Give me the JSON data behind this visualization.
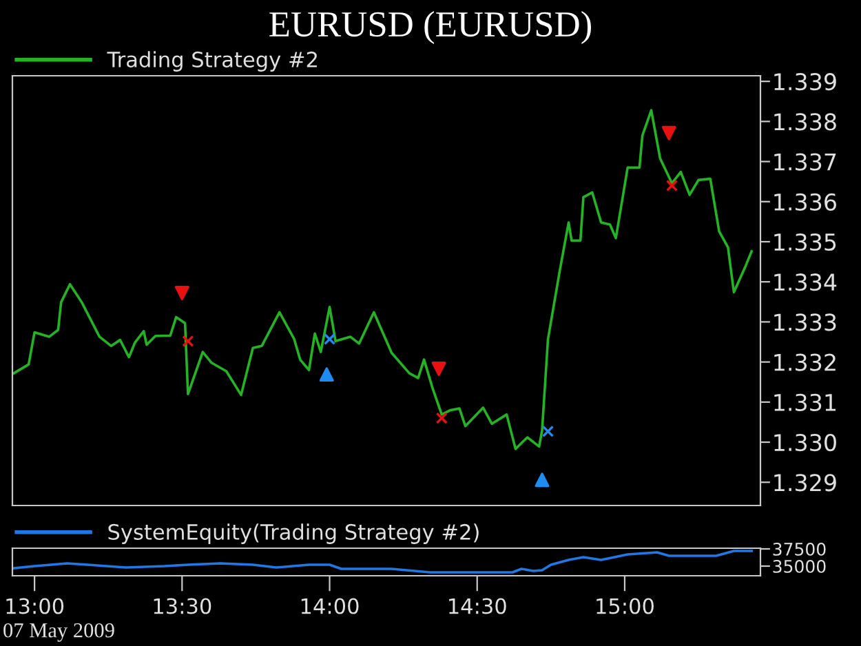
{
  "chart_data": [
    {
      "type": "line",
      "title": "EURUSD (EURUSD)",
      "legend": "top left",
      "tick_labels": "y",
      "grid": false,
      "xlim": [
        12.925,
        15.46
      ],
      "ylim": [
        1.32842,
        1.33914
      ],
      "yticks": [
        {
          "value": 1.329,
          "label": "1.329"
        },
        {
          "value": 1.33,
          "label": "1.330"
        },
        {
          "value": 1.331,
          "label": "1.331"
        },
        {
          "value": 1.332,
          "label": "1.332"
        },
        {
          "value": 1.333,
          "label": "1.333"
        },
        {
          "value": 1.334,
          "label": "1.334"
        },
        {
          "value": 1.335,
          "label": "1.335"
        },
        {
          "value": 1.336,
          "label": "1.336"
        },
        {
          "value": 1.337,
          "label": "1.337"
        },
        {
          "value": 1.338,
          "label": "1.338"
        },
        {
          "value": 1.339,
          "label": "1.339"
        }
      ],
      "series": [
        {
          "name": "Trading Strategy #2",
          "color": "#22b422",
          "marker": "none",
          "x": [
            12.93,
            12.98,
            13.0,
            13.05,
            13.08,
            13.09,
            13.12,
            13.16,
            13.22,
            13.26,
            13.29,
            13.32,
            13.34,
            13.37,
            13.38,
            13.41,
            13.46,
            13.48,
            13.51,
            13.52,
            13.57,
            13.6,
            13.65,
            13.7,
            13.74,
            13.77,
            13.83,
            13.88,
            13.9,
            13.93,
            13.95,
            13.97,
            14.0,
            14.02,
            14.07,
            14.1,
            14.15,
            14.21,
            14.27,
            14.3,
            14.32,
            14.35,
            14.38,
            14.41,
            14.44,
            14.46,
            14.52,
            14.55,
            14.6,
            14.63,
            14.67,
            14.71,
            14.72,
            14.74,
            14.78,
            14.81,
            14.82,
            14.85,
            14.86,
            14.89,
            14.92,
            14.95,
            14.97,
            15.01,
            15.05,
            15.06,
            15.09,
            15.12,
            15.16,
            15.19,
            15.22,
            15.25,
            15.29,
            15.32,
            15.35,
            15.37,
            15.41,
            15.43
          ],
          "values": [
            1.33172,
            1.33194,
            1.33274,
            1.33263,
            1.3328,
            1.33349,
            1.33394,
            1.33349,
            1.33263,
            1.3324,
            1.33255,
            1.33212,
            1.33248,
            1.33277,
            1.33243,
            1.33265,
            1.33266,
            1.33312,
            1.33297,
            1.3312,
            1.33225,
            1.33198,
            1.33177,
            1.33118,
            1.33235,
            1.3324,
            1.33324,
            1.33257,
            1.33206,
            1.3318,
            1.33271,
            1.33225,
            1.33337,
            1.33252,
            1.33263,
            1.33246,
            1.33324,
            1.33223,
            1.33172,
            1.3316,
            1.33206,
            1.33132,
            1.33069,
            1.3308,
            1.33084,
            1.3304,
            1.33086,
            1.33046,
            1.33069,
            1.32983,
            1.33012,
            1.32989,
            1.33029,
            1.33257,
            1.33428,
            1.33548,
            1.33503,
            1.33503,
            1.33611,
            1.33623,
            1.33548,
            1.33543,
            1.33509,
            1.33685,
            1.33685,
            1.33765,
            1.33828,
            1.33708,
            1.33646,
            1.33674,
            1.33617,
            1.33654,
            1.33657,
            1.33526,
            1.33486,
            1.33374,
            1.3344,
            1.33476
          ]
        },
        {
          "type": "scatter",
          "color": "#e81010",
          "marker": "triangle_down",
          "x": [
            13.5,
            14.37,
            15.15
          ],
          "values": [
            1.33372,
            1.33183,
            1.33771
          ]
        },
        {
          "type": "scatter",
          "color": "#1e8cf0",
          "marker": "triangle",
          "x": [
            13.99,
            14.72
          ],
          "values": [
            1.33169,
            1.32906
          ]
        },
        {
          "type": "scatter",
          "color": "#e81010",
          "marker": "cross",
          "x": [
            13.52,
            14.38,
            15.16
          ],
          "values": [
            1.33252,
            1.3306,
            1.3364
          ]
        },
        {
          "type": "scatter",
          "color": "#1e8cf0",
          "marker": "cross",
          "x": [
            14.0,
            14.74
          ],
          "values": [
            1.33257,
            1.33027
          ]
        }
      ]
    },
    {
      "type": "line",
      "legend": "top left",
      "grid": false,
      "xlim": [
        12.925,
        15.46
      ],
      "ylim": [
        33600,
        37600
      ],
      "xticks": [
        {
          "value": 13,
          "label": "13:00"
        },
        {
          "value": 13.5,
          "label": "13:30"
        },
        {
          "value": 14,
          "label": "14:00"
        },
        {
          "value": 14.5,
          "label": "14:30"
        },
        {
          "value": 15,
          "label": "15:00"
        }
      ],
      "yticks": [
        35000,
        37500
      ],
      "annotations": [
        "07 May 2009"
      ],
      "series": [
        {
          "name": "SystemEquity(Trading Strategy #2)",
          "color": "#1e78e6",
          "marker": "none",
          "x": [
            12.93,
            13.0,
            13.11,
            13.18,
            13.31,
            13.44,
            13.52,
            13.63,
            13.74,
            13.82,
            13.93,
            14.0,
            14.04,
            14.21,
            14.34,
            14.62,
            14.65,
            14.69,
            14.72,
            14.75,
            14.81,
            14.86,
            14.92,
            15.01,
            15.11,
            15.15,
            15.31,
            15.37,
            15.43
          ],
          "values": [
            34700,
            35000,
            35400,
            35200,
            34800,
            35000,
            35200,
            35400,
            35200,
            34800,
            35200,
            35200,
            34600,
            34600,
            34100,
            34100,
            34600,
            34300,
            34400,
            35200,
            35900,
            36300,
            35900,
            36700,
            37000,
            36500,
            36500,
            37200,
            37200
          ]
        }
      ]
    }
  ]
}
